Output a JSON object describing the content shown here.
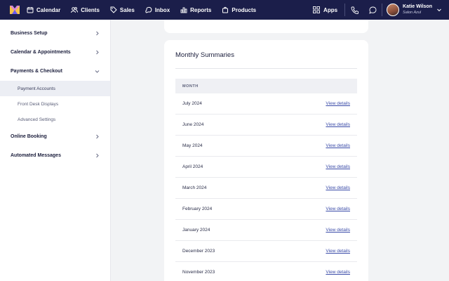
{
  "nav": {
    "items": [
      {
        "label": "Calendar",
        "icon": "calendar-icon"
      },
      {
        "label": "Clients",
        "icon": "users-icon"
      },
      {
        "label": "Sales",
        "icon": "tag-icon"
      },
      {
        "label": "Inbox",
        "icon": "inbox-icon"
      },
      {
        "label": "Reports",
        "icon": "bar-chart-icon"
      },
      {
        "label": "Products",
        "icon": "bag-icon"
      }
    ],
    "apps_label": "Apps",
    "user_name": "Katie Wilson",
    "user_business": "Salon Azul"
  },
  "sidebar": {
    "items": [
      {
        "label": "Business Setup"
      },
      {
        "label": "Calendar & Appointments"
      },
      {
        "label": "Payments & Checkout"
      },
      {
        "label": "Online Booking"
      },
      {
        "label": "Automated Messages"
      }
    ],
    "subitems": [
      {
        "label": "Payment Accounts"
      },
      {
        "label": "Front Desk Displays"
      },
      {
        "label": "Advanced Settings"
      }
    ]
  },
  "summaries": {
    "title": "Monthly Summaries",
    "column_header": "MONTH",
    "link_label": "View details",
    "rows": [
      {
        "month": "July 2024"
      },
      {
        "month": "June 2024"
      },
      {
        "month": "May 2024"
      },
      {
        "month": "April 2024"
      },
      {
        "month": "March 2024"
      },
      {
        "month": "February 2024"
      },
      {
        "month": "January 2024"
      },
      {
        "month": "December 2023"
      },
      {
        "month": "November 2023"
      }
    ]
  },
  "colors": {
    "nav_bg": "#1b1e4a",
    "link": "#3a4ba8",
    "active_bg": "#eceef4"
  }
}
